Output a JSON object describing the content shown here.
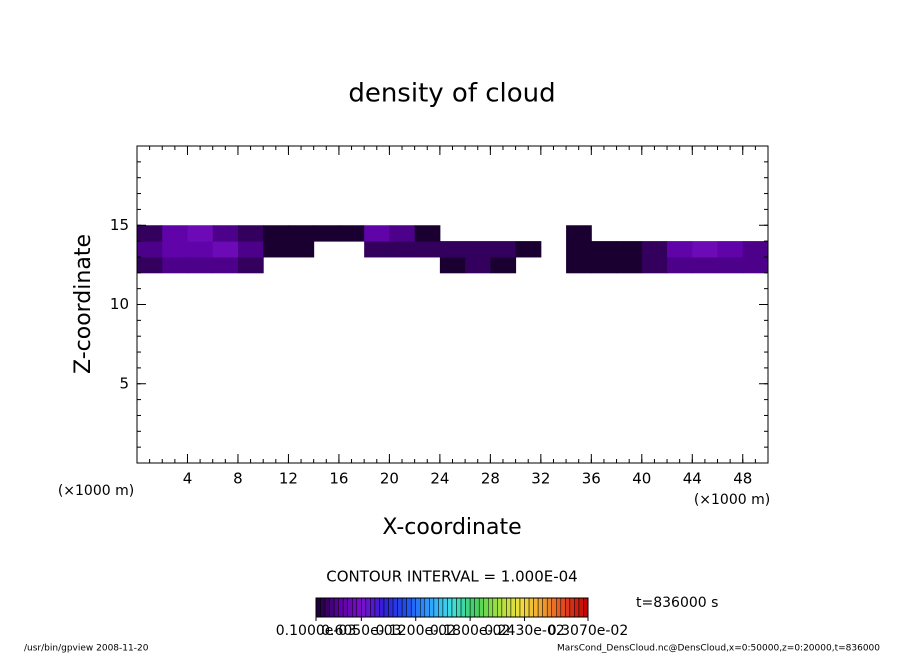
{
  "chart_data": {
    "type": "heatmap",
    "title": "density of cloud",
    "xlabel": "X-coordinate",
    "ylabel": "Z-coordinate",
    "x_unit_left": "(×1000 m)",
    "x_unit_right": "(×1000 m)",
    "contour_interval": "CONTOUR INTERVAL = 1.000E-04",
    "time_label": "t=836000 s",
    "footer_left": "/usr/bin/gpview  2008-11-20",
    "footer_right": "MarsCond_DensCloud.nc@DensCloud,x=0:50000,z=0:20000,t=836000",
    "xlim": [
      0,
      50
    ],
    "xticks": [
      4,
      8,
      12,
      16,
      20,
      24,
      28,
      32,
      36,
      40,
      44,
      48
    ],
    "xminor_step": 1,
    "ylim": [
      0,
      20
    ],
    "yticks": [
      5,
      10,
      15
    ],
    "yminor_step": 1,
    "x": [
      1,
      3,
      5,
      7,
      9,
      11,
      13,
      15,
      17,
      19,
      21,
      23,
      25,
      27,
      29,
      31,
      33,
      35,
      37,
      39,
      41,
      43,
      45,
      47,
      49
    ],
    "z": [
      12.5,
      13.5,
      14.5
    ],
    "values": [
      [
        0.0002,
        0.0003,
        0.0003,
        0.0003,
        0.0002,
        null,
        null,
        null,
        null,
        null,
        null,
        null,
        0.0001,
        0.0002,
        0.0001,
        null,
        null,
        0.0001,
        0.0001,
        0.0001,
        0.0002,
        0.0003,
        0.0003,
        0.0003,
        0.0003
      ],
      [
        0.0003,
        0.0004,
        0.0004,
        0.0005,
        0.0003,
        0.0001,
        0.0001,
        null,
        null,
        0.0002,
        0.0002,
        0.0002,
        0.0002,
        0.0002,
        0.0002,
        0.0001,
        null,
        0.0001,
        0.0001,
        0.0001,
        0.0002,
        0.0004,
        0.0005,
        0.0004,
        0.0003
      ],
      [
        0.0002,
        0.0004,
        0.0005,
        0.0003,
        0.0002,
        0.0001,
        0.0001,
        0.0001,
        0.0001,
        0.0004,
        0.0003,
        0.0001,
        null,
        null,
        null,
        null,
        null,
        0.0001,
        null,
        null,
        null,
        null,
        null,
        null,
        null
      ]
    ],
    "clim": [
      0.0001,
      0.0031
    ],
    "colors": [
      "#1a0030",
      "#5a00a0",
      "#7a10c8",
      "#3020d8",
      "#2050f0",
      "#30a0ff",
      "#40e0e0",
      "#40d060",
      "#a0e040",
      "#f0e040",
      "#f0a030",
      "#e04020",
      "#c00000"
    ],
    "colorbar_ticks": [
      {
        "value": 0.0001,
        "label": "0.1000e-03"
      },
      {
        "value": 0.0006,
        "label": "0.6050e-03"
      },
      {
        "value": 0.0012,
        "label": "0.1200e-02"
      },
      {
        "value": 0.0018,
        "label": "0.1800e-02"
      },
      {
        "value": 0.0024,
        "label": "0.2430e-02"
      },
      {
        "value": 0.0031,
        "label": "0.3070e-02"
      }
    ]
  }
}
